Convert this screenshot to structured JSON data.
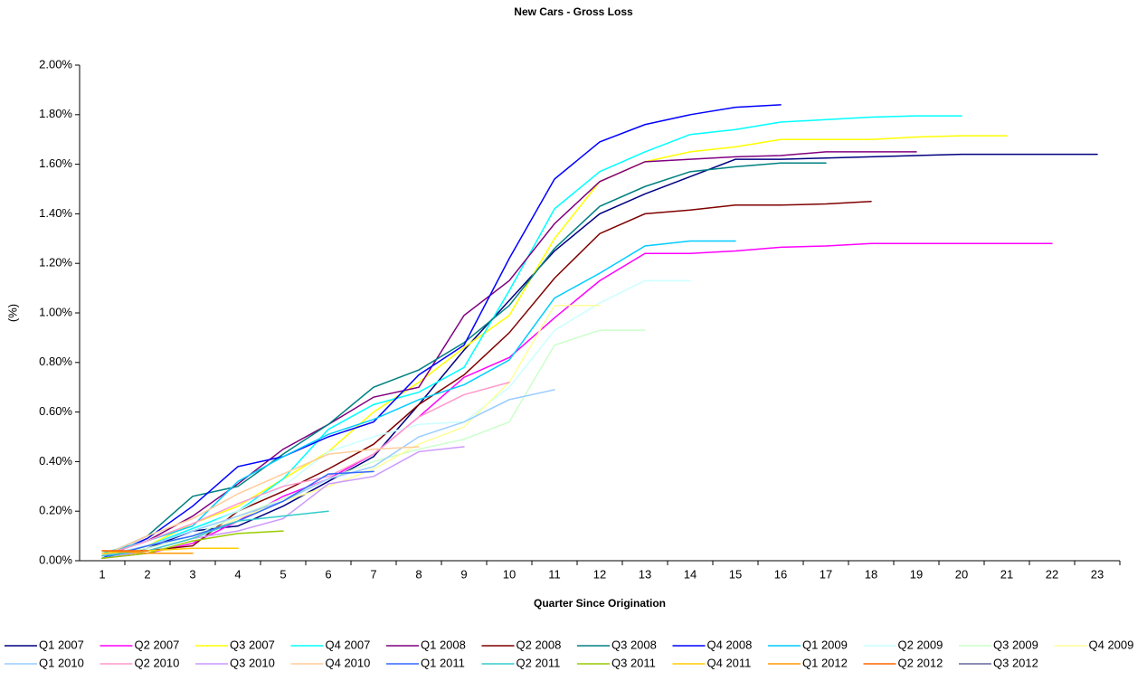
{
  "chart_data": {
    "type": "line",
    "title": "New Cars - Gross Loss",
    "y_label": "(%)",
    "x_label": "Quarter Since Origination",
    "categories": [
      "1",
      "2",
      "3",
      "4",
      "5",
      "6",
      "7",
      "8",
      "9",
      "10",
      "11",
      "12",
      "13",
      "14",
      "15",
      "16",
      "17",
      "18",
      "19",
      "20",
      "21",
      "22",
      "23"
    ],
    "ylim": [
      0,
      2
    ],
    "yticks": [
      {
        "value": 0,
        "label": "0.00%"
      },
      {
        "value": 0.2,
        "label": "0.20%"
      },
      {
        "value": 0.4,
        "label": "0.40%"
      },
      {
        "value": 0.6,
        "label": "0.60%"
      },
      {
        "value": 0.8,
        "label": "0.80%"
      },
      {
        "value": 1.0,
        "label": "1.00%"
      },
      {
        "value": 1.2,
        "label": "1.20%"
      },
      {
        "value": 1.4,
        "label": "1.40%"
      },
      {
        "value": 1.6,
        "label": "1.60%"
      },
      {
        "value": 1.8,
        "label": "1.80%"
      },
      {
        "value": 2.0,
        "label": "2.00%"
      }
    ],
    "grid": false,
    "legend": "bottom",
    "series": [
      {
        "name": "Q1 2007",
        "color": "#000080",
        "values": [
          0.01,
          0.05,
          0.12,
          0.14,
          0.22,
          0.32,
          0.42,
          0.63,
          0.85,
          1.05,
          1.25,
          1.4,
          1.48,
          1.55,
          1.62,
          1.62,
          1.625,
          1.63,
          1.635,
          1.64,
          1.64,
          1.64,
          1.64
        ]
      },
      {
        "name": "Q2 2007",
        "color": "#ff00ff",
        "values": [
          0.01,
          0.03,
          0.07,
          0.16,
          0.26,
          0.33,
          0.43,
          0.58,
          0.74,
          0.82,
          0.98,
          1.13,
          1.24,
          1.24,
          1.25,
          1.265,
          1.27,
          1.28,
          1.28,
          1.28,
          1.28,
          1.28,
          null
        ]
      },
      {
        "name": "Q3 2007",
        "color": "#ffff00",
        "values": [
          0.01,
          0.06,
          0.15,
          0.22,
          0.33,
          0.44,
          0.6,
          0.72,
          0.86,
          0.99,
          1.3,
          1.53,
          1.61,
          1.65,
          1.67,
          1.7,
          1.7,
          1.7,
          1.71,
          1.715,
          1.715,
          null,
          null
        ]
      },
      {
        "name": "Q4 2007",
        "color": "#00ffff",
        "values": [
          0.02,
          0.06,
          0.13,
          0.2,
          0.33,
          0.53,
          0.63,
          0.68,
          0.78,
          1.09,
          1.42,
          1.57,
          1.65,
          1.72,
          1.74,
          1.77,
          1.78,
          1.79,
          1.795,
          1.795,
          null,
          null,
          null
        ]
      },
      {
        "name": "Q1 2008",
        "color": "#800080",
        "values": [
          0.02,
          0.08,
          0.18,
          0.31,
          0.45,
          0.55,
          0.66,
          0.7,
          0.99,
          1.13,
          1.36,
          1.53,
          1.61,
          1.62,
          1.63,
          1.635,
          1.65,
          1.65,
          1.65,
          null,
          null,
          null,
          null
        ]
      },
      {
        "name": "Q2 2008",
        "color": "#800000",
        "values": [
          0.01,
          0.04,
          0.06,
          0.2,
          0.28,
          0.37,
          0.47,
          0.63,
          0.75,
          0.92,
          1.14,
          1.32,
          1.4,
          1.415,
          1.435,
          1.435,
          1.44,
          1.45,
          null,
          null,
          null,
          null,
          null
        ]
      },
      {
        "name": "Q3 2008",
        "color": "#008080",
        "values": [
          0.02,
          0.1,
          0.26,
          0.3,
          0.43,
          0.55,
          0.7,
          0.77,
          0.88,
          1.03,
          1.26,
          1.43,
          1.51,
          1.57,
          1.59,
          1.605,
          1.605,
          null,
          null,
          null,
          null,
          null,
          null
        ]
      },
      {
        "name": "Q4 2008",
        "color": "#0000ff",
        "values": [
          0.01,
          0.09,
          0.22,
          0.38,
          0.42,
          0.5,
          0.56,
          0.75,
          0.87,
          1.22,
          1.54,
          1.69,
          1.76,
          1.8,
          1.83,
          1.84,
          null,
          null,
          null,
          null,
          null,
          null,
          null
        ]
      },
      {
        "name": "Q1 2009",
        "color": "#00ccff",
        "values": [
          0.03,
          0.08,
          0.14,
          0.32,
          0.42,
          0.51,
          0.57,
          0.65,
          0.71,
          0.81,
          1.06,
          1.16,
          1.27,
          1.29,
          1.29,
          null,
          null,
          null,
          null,
          null,
          null,
          null,
          null
        ]
      },
      {
        "name": "Q2 2009",
        "color": "#ccffff",
        "values": [
          0.02,
          0.06,
          0.12,
          0.2,
          0.3,
          0.44,
          0.5,
          0.55,
          0.56,
          0.7,
          0.93,
          1.04,
          1.13,
          1.13,
          null,
          null,
          null,
          null,
          null,
          null,
          null,
          null,
          null
        ]
      },
      {
        "name": "Q3 2009",
        "color": "#ccffcc",
        "values": [
          0.02,
          0.05,
          0.1,
          0.18,
          0.25,
          0.33,
          0.4,
          0.45,
          0.49,
          0.56,
          0.87,
          0.93,
          0.93,
          null,
          null,
          null,
          null,
          null,
          null,
          null,
          null,
          null,
          null
        ]
      },
      {
        "name": "Q4 2009",
        "color": "#ffff99",
        "values": [
          0.01,
          0.04,
          0.09,
          0.17,
          0.24,
          0.3,
          0.37,
          0.47,
          0.54,
          0.72,
          1.03,
          1.03,
          null,
          null,
          null,
          null,
          null,
          null,
          null,
          null,
          null,
          null,
          null
        ]
      },
      {
        "name": "Q1 2010",
        "color": "#99ccff",
        "values": [
          0.02,
          0.06,
          0.12,
          0.18,
          0.24,
          0.33,
          0.38,
          0.5,
          0.56,
          0.65,
          0.69,
          null,
          null,
          null,
          null,
          null,
          null,
          null,
          null,
          null,
          null,
          null,
          null
        ]
      },
      {
        "name": "Q2 2010",
        "color": "#ff99cc",
        "values": [
          0.02,
          0.08,
          0.15,
          0.23,
          0.3,
          0.34,
          0.43,
          0.58,
          0.67,
          0.72,
          null,
          null,
          null,
          null,
          null,
          null,
          null,
          null,
          null,
          null,
          null,
          null,
          null
        ]
      },
      {
        "name": "Q3 2010",
        "color": "#cc99ff",
        "values": [
          0.01,
          0.04,
          0.09,
          0.12,
          0.17,
          0.31,
          0.34,
          0.44,
          0.46,
          null,
          null,
          null,
          null,
          null,
          null,
          null,
          null,
          null,
          null,
          null,
          null,
          null,
          null
        ]
      },
      {
        "name": "Q4 2010",
        "color": "#ffcc99",
        "values": [
          0.02,
          0.1,
          0.17,
          0.27,
          0.35,
          0.43,
          0.45,
          0.46,
          null,
          null,
          null,
          null,
          null,
          null,
          null,
          null,
          null,
          null,
          null,
          null,
          null,
          null,
          null
        ]
      },
      {
        "name": "Q1 2011",
        "color": "#3366ff",
        "values": [
          0.01,
          0.06,
          0.1,
          0.16,
          0.24,
          0.35,
          0.36,
          null,
          null,
          null,
          null,
          null,
          null,
          null,
          null,
          null,
          null,
          null,
          null,
          null,
          null,
          null,
          null
        ]
      },
      {
        "name": "Q2 2011",
        "color": "#33cccc",
        "values": [
          0.02,
          0.04,
          0.09,
          0.16,
          0.18,
          0.2,
          null,
          null,
          null,
          null,
          null,
          null,
          null,
          null,
          null,
          null,
          null,
          null,
          null,
          null,
          null,
          null,
          null
        ]
      },
      {
        "name": "Q3 2011",
        "color": "#99cc00",
        "values": [
          0.01,
          0.03,
          0.08,
          0.11,
          0.12,
          null,
          null,
          null,
          null,
          null,
          null,
          null,
          null,
          null,
          null,
          null,
          null,
          null,
          null,
          null,
          null,
          null,
          null
        ]
      },
      {
        "name": "Q4 2011",
        "color": "#ffcc00",
        "values": [
          0.03,
          0.04,
          0.05,
          0.05,
          null,
          null,
          null,
          null,
          null,
          null,
          null,
          null,
          null,
          null,
          null,
          null,
          null,
          null,
          null,
          null,
          null,
          null,
          null
        ]
      },
      {
        "name": "Q1 2012",
        "color": "#ff9900",
        "values": [
          0.04,
          0.03,
          0.03,
          null,
          null,
          null,
          null,
          null,
          null,
          null,
          null,
          null,
          null,
          null,
          null,
          null,
          null,
          null,
          null,
          null,
          null,
          null,
          null
        ]
      },
      {
        "name": "Q2 2012",
        "color": "#ff6600",
        "values": [
          0.04,
          0.04,
          null,
          null,
          null,
          null,
          null,
          null,
          null,
          null,
          null,
          null,
          null,
          null,
          null,
          null,
          null,
          null,
          null,
          null,
          null,
          null,
          null
        ]
      },
      {
        "name": "Q3 2012",
        "color": "#666699",
        "values": [
          0.02,
          null,
          null,
          null,
          null,
          null,
          null,
          null,
          null,
          null,
          null,
          null,
          null,
          null,
          null,
          null,
          null,
          null,
          null,
          null,
          null,
          null,
          null
        ]
      }
    ]
  }
}
